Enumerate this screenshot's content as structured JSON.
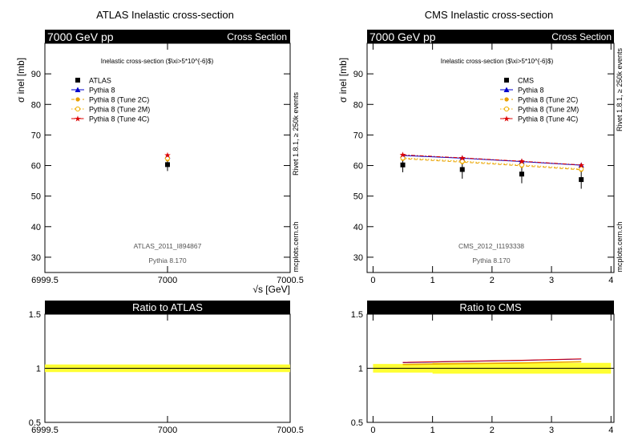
{
  "panels": [
    {
      "id": "atlas",
      "title": "ATLAS Inelastic cross-section",
      "header_left": "7000 GeV pp",
      "header_right": "Cross Section",
      "side_top": "Rivet 1.8.1, ≥ 250k events",
      "side_bottom": "mcplots.cern.ch",
      "legend_title": "Inelastic cross-section ($\\xi>5*10^{-6}$)",
      "annotation": "ATLAS_2011_I894867",
      "generator": "Pythia 8.170",
      "xlabel": "√s [GeV]",
      "ylabel": "σ inel [mb]",
      "ratio_title": "Ratio to ATLAS"
    },
    {
      "id": "cms",
      "title": "CMS Inelastic cross-section",
      "header_left": "7000 GeV pp",
      "header_right": "Cross Section",
      "side_top": "Rivet 1.8.1, ≥ 250k events",
      "side_bottom": "mcplots.cern.ch",
      "legend_title": "Inelastic cross-section ($\\xi>5*10^{-6}$)",
      "annotation": "CMS_2012_I1193338",
      "generator": "Pythia 8.170",
      "xlabel": "",
      "ylabel": "σ inel [mb]",
      "ratio_title": "Ratio to CMS"
    }
  ],
  "chart_data": [
    {
      "type": "scatter",
      "title": "ATLAS Inelastic cross-section",
      "xlabel": "√s [GeV]",
      "ylabel": "σ inel [mb]",
      "xlim": [
        6999.5,
        7000.5
      ],
      "ylim": [
        25,
        100
      ],
      "xticks": [
        6999.5,
        7000,
        7000.5
      ],
      "xtick_labels": [
        "6999.5",
        "7000",
        "7000.5"
      ],
      "yticks": [
        30,
        40,
        50,
        60,
        70,
        80,
        90
      ],
      "grid": false,
      "legend_position": "top-left",
      "series": [
        {
          "name": "ATLAS",
          "color": "#000000",
          "marker": "square",
          "line": "none",
          "x": [
            7000
          ],
          "y": [
            60.3
          ],
          "yerr": [
            2.1
          ]
        },
        {
          "name": "Pythia 8",
          "color": "#0000cc",
          "marker": "triangle",
          "line": "solid",
          "x": [
            7000
          ],
          "y": [
            63.1
          ]
        },
        {
          "name": "Pythia 8 (Tune 2C)",
          "color": "#e8a000",
          "marker": "dot",
          "line": "dashed",
          "x": [
            7000
          ],
          "y": [
            62.0
          ]
        },
        {
          "name": "Pythia 8 (Tune 2M)",
          "color": "#f0b000",
          "marker": "circle",
          "line": "dotted",
          "x": [
            7000
          ],
          "y": [
            62.4
          ]
        },
        {
          "name": "Pythia 8 (Tune 4C)",
          "color": "#dd0000",
          "marker": "star",
          "line": "dashdot",
          "x": [
            7000
          ],
          "y": [
            63.4
          ]
        }
      ]
    },
    {
      "type": "scatter",
      "title": "CMS Inelastic cross-section",
      "xlabel": "",
      "ylabel": "σ inel [mb]",
      "xlim": [
        -0.1,
        4.05
      ],
      "ylim": [
        25,
        100
      ],
      "xticks": [
        0,
        1,
        2,
        3,
        4
      ],
      "xtick_labels": [
        "0",
        "1",
        "2",
        "3",
        "4"
      ],
      "yticks": [
        30,
        40,
        50,
        60,
        70,
        80,
        90
      ],
      "grid": false,
      "legend_position": "top-right",
      "series": [
        {
          "name": "CMS",
          "color": "#000000",
          "marker": "square",
          "line": "none",
          "x": [
            0.5,
            1.5,
            2.5,
            3.5
          ],
          "y": [
            60.2,
            58.7,
            57.2,
            55.4
          ],
          "yerr": [
            2.4,
            3.0,
            3.0,
            3.0
          ]
        },
        {
          "name": "Pythia 8",
          "color": "#0000cc",
          "marker": "triangle",
          "line": "solid",
          "x": [
            0.5,
            1.5,
            2.5,
            3.5
          ],
          "y": [
            63.3,
            62.4,
            61.3,
            60.1
          ]
        },
        {
          "name": "Pythia 8 (Tune 2C)",
          "color": "#e8a000",
          "marker": "dot",
          "line": "dashed",
          "x": [
            0.5,
            1.5,
            2.5,
            3.5
          ],
          "y": [
            62.2,
            61.1,
            59.9,
            58.6
          ]
        },
        {
          "name": "Pythia 8 (Tune 2M)",
          "color": "#f0b000",
          "marker": "circle",
          "line": "dotted",
          "x": [
            0.5,
            1.5,
            2.5,
            3.5
          ],
          "y": [
            62.5,
            61.4,
            60.2,
            58.9
          ]
        },
        {
          "name": "Pythia 8 (Tune 4C)",
          "color": "#dd0000",
          "marker": "star",
          "line": "dashdot",
          "x": [
            0.5,
            1.5,
            2.5,
            3.5
          ],
          "y": [
            63.5,
            62.5,
            61.4,
            60.2
          ]
        }
      ]
    },
    {
      "type": "line",
      "title": "Ratio to ATLAS",
      "xlim": [
        6999.5,
        7000.5
      ],
      "ylim": [
        0.5,
        1.5
      ],
      "xticks": [
        6999.5,
        7000,
        7000.5
      ],
      "xtick_labels": [
        "6999.5",
        "7000",
        "7000.5"
      ],
      "yticks": [
        0.5,
        1,
        1.5
      ],
      "ytick_labels": [
        "0.5",
        "1",
        "1.5"
      ],
      "band": {
        "color": "#ffff33",
        "x": [
          6999.5,
          7000.5
        ],
        "lo": [
          0.965,
          0.965
        ],
        "hi": [
          1.035,
          1.035
        ]
      },
      "series": [
        {
          "name": "ATLAS",
          "color": "#000000",
          "x": [
            6999.5,
            7000.5
          ],
          "y": [
            1.0,
            1.0
          ]
        }
      ]
    },
    {
      "type": "line",
      "title": "Ratio to CMS",
      "xlim": [
        -0.1,
        4.05
      ],
      "ylim": [
        0.5,
        1.5
      ],
      "xticks": [
        0,
        1,
        2,
        3,
        4
      ],
      "xtick_labels": [
        "0",
        "1",
        "2",
        "3",
        "4"
      ],
      "yticks": [
        0.5,
        1,
        1.5
      ],
      "ytick_labels": [
        "0.5",
        "1",
        "1.5"
      ],
      "band": {
        "color": "#ffff33",
        "x": [
          0,
          1,
          1,
          4
        ],
        "lo": [
          0.96,
          0.96,
          0.95,
          0.95
        ],
        "hi": [
          1.04,
          1.04,
          1.05,
          1.05
        ]
      },
      "series": [
        {
          "name": "CMS",
          "color": "#000000",
          "x": [
            0,
            4
          ],
          "y": [
            1.0,
            1.0
          ]
        },
        {
          "name": "Pythia 8",
          "color": "#0000cc",
          "x": [
            0.5,
            1.5,
            2.5,
            3.5
          ],
          "y": [
            1.052,
            1.063,
            1.072,
            1.085
          ]
        },
        {
          "name": "Pythia 8 (Tune 2C)",
          "color": "#e8a000",
          "x": [
            0.5,
            1.5,
            2.5,
            3.5
          ],
          "y": [
            1.033,
            1.041,
            1.047,
            1.058
          ]
        },
        {
          "name": "Pythia 8 (Tune 2M)",
          "color": "#f0b000",
          "x": [
            0.5,
            1.5,
            2.5,
            3.5
          ],
          "y": [
            1.038,
            1.046,
            1.052,
            1.063
          ]
        },
        {
          "name": "Pythia 8 (Tune 4C)",
          "color": "#dd0000",
          "x": [
            0.5,
            1.5,
            2.5,
            3.5
          ],
          "y": [
            1.055,
            1.065,
            1.074,
            1.087
          ]
        }
      ]
    }
  ]
}
